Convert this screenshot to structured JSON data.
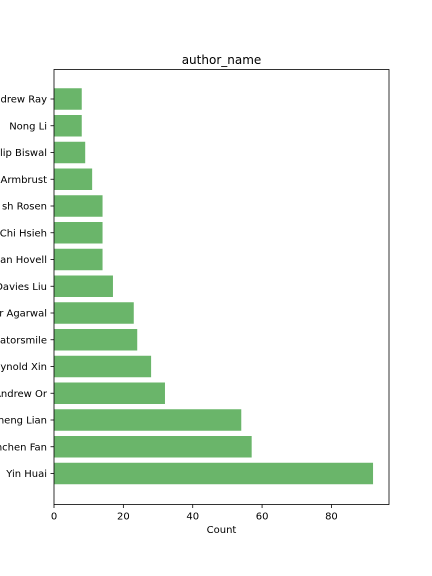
{
  "chart_data": {
    "type": "bar",
    "orientation": "horizontal",
    "title": "author_name",
    "xlabel": "Count",
    "ylabel": "",
    "xlim": [
      0,
      96.6
    ],
    "x_ticks": [
      0,
      20,
      40,
      60,
      80
    ],
    "grid": false,
    "bar_color": "#6ab56a",
    "categories": [
      "Yin Huai",
      "Wenchen Fan",
      "Cheng Lian",
      "Andrew Or",
      "Reynold Xin",
      "gatorsmile",
      "r Agarwal",
      "Davies Liu",
      "an Hovell",
      "Chi Hsieh",
      "sh Rosen",
      "Armbrust",
      "lip Biswal",
      "Nong Li",
      "drew Ray"
    ],
    "values": [
      92,
      57,
      54,
      32,
      28,
      24,
      23,
      17,
      14,
      14,
      14,
      11,
      9,
      8,
      8
    ]
  }
}
